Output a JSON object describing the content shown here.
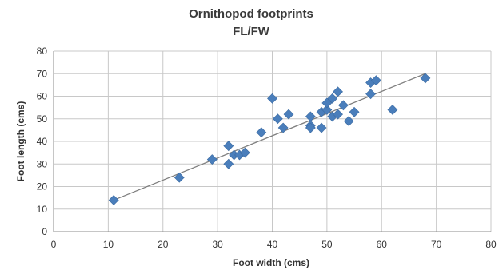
{
  "chart_data": {
    "type": "scatter",
    "title": "Ornithopod footprints",
    "subtitle": "FL/FW",
    "xlabel": "Foot width (cms)",
    "ylabel": "Foot length (cms)",
    "xlim": [
      0,
      80
    ],
    "ylim": [
      0,
      80
    ],
    "x_ticks": [
      "0",
      "10",
      "20",
      "30",
      "40",
      "50",
      "60",
      "70",
      "80"
    ],
    "y_ticks": [
      "0",
      "10",
      "20",
      "30",
      "40",
      "50",
      "60",
      "70",
      "80"
    ],
    "grid": true,
    "legend": "none",
    "marker": "diamond",
    "colors": {
      "marker": "#4a7ebb",
      "trendline": "#7f7f7f",
      "grid": "#c8c8c8",
      "axis": "#8c8c8c"
    },
    "series": [
      {
        "points": [
          [
            11,
            14
          ],
          [
            23,
            24
          ],
          [
            29,
            32
          ],
          [
            32,
            38
          ],
          [
            32,
            30
          ],
          [
            33,
            34
          ],
          [
            34,
            34
          ],
          [
            35,
            35
          ],
          [
            38,
            44
          ],
          [
            40,
            59
          ],
          [
            41,
            50
          ],
          [
            42,
            46
          ],
          [
            43,
            52
          ],
          [
            47,
            51
          ],
          [
            47,
            47
          ],
          [
            47,
            46
          ],
          [
            49,
            46
          ],
          [
            49,
            53
          ],
          [
            50,
            54
          ],
          [
            50,
            57
          ],
          [
            51,
            51
          ],
          [
            51,
            59
          ],
          [
            52,
            62
          ],
          [
            52,
            52
          ],
          [
            53,
            56
          ],
          [
            54,
            49
          ],
          [
            55,
            53
          ],
          [
            58,
            61
          ],
          [
            58,
            66
          ],
          [
            59,
            67
          ],
          [
            62,
            54
          ],
          [
            68,
            68
          ]
        ]
      }
    ],
    "trendline": {
      "from": [
        11,
        14
      ],
      "to": [
        68,
        70
      ]
    }
  }
}
